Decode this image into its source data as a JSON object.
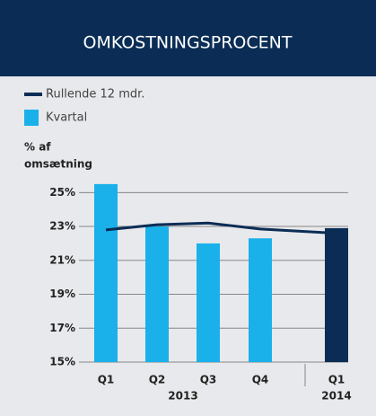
{
  "chart_data": {
    "type": "bar",
    "title": "OMKOSTNINGSPROCENT",
    "ylabel": [
      "% af",
      "omsætning"
    ],
    "categories": [
      "Q1",
      "Q2",
      "Q3",
      "Q4",
      "Q1"
    ],
    "groups": [
      "2013",
      "2014"
    ],
    "series": [
      {
        "name": "Rullende 12 mdr.",
        "type": "line",
        "color": "#0b2d55",
        "values": [
          22.8,
          23.1,
          23.2,
          22.85,
          22.6
        ]
      },
      {
        "name": "Kvartal",
        "type": "bar",
        "color": "#1ab0ea",
        "colors": [
          "#1ab0ea",
          "#1ab0ea",
          "#1ab0ea",
          "#1ab0ea",
          "#0b2d55"
        ],
        "values": [
          25.5,
          23.0,
          22.0,
          22.3,
          22.9
        ]
      }
    ],
    "ylim": [
      15,
      25.6
    ],
    "yticks": [
      {
        "value": 15,
        "label": "15%"
      },
      {
        "value": 17,
        "label": "17%"
      },
      {
        "value": 19,
        "label": "19%"
      },
      {
        "value": 21,
        "label": "21%"
      },
      {
        "value": 23,
        "label": "23%"
      },
      {
        "value": 25,
        "label": "25%"
      }
    ],
    "grid": true
  }
}
